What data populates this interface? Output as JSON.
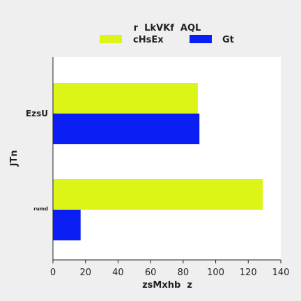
{
  "chart_data": {
    "type": "bar",
    "orientation": "horizontal",
    "legend_title": "r  LkVKf  AQL",
    "legend_placement": "top",
    "categories": [
      "EzsU",
      "rumd"
    ],
    "series": [
      {
        "name": "cHsEx",
        "color": "#dcf517",
        "values": [
          89,
          129
        ]
      },
      {
        "name": "Gt",
        "color": "#0b1ff5",
        "values": [
          90,
          17
        ]
      }
    ],
    "xlabel": "zsMxhb  z",
    "ylabel": "JTn",
    "xlim": [
      0,
      140
    ],
    "xticks": [
      0,
      20,
      40,
      60,
      80,
      100,
      120,
      140
    ],
    "grid": false
  }
}
